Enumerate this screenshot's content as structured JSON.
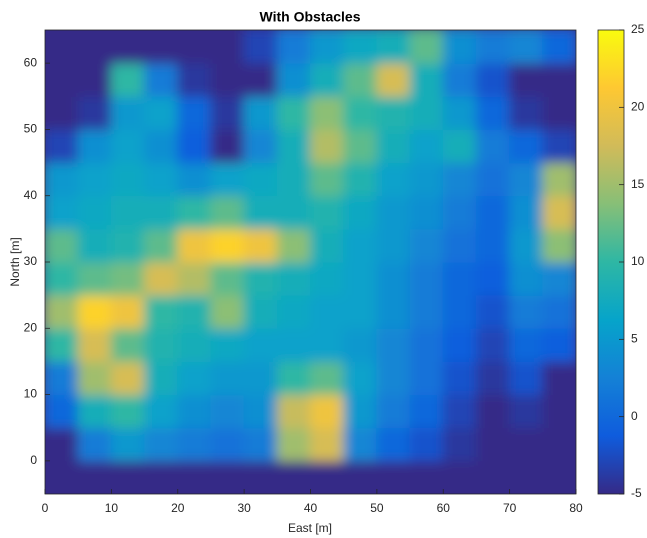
{
  "chart_data": {
    "type": "heatmap",
    "title": "With Obstacles",
    "x_label": "East [m]",
    "y_label": "North [m]",
    "xbins": [
      0,
      5,
      10,
      15,
      20,
      25,
      30,
      35,
      40,
      45,
      50,
      55,
      60,
      65,
      70,
      75,
      80
    ],
    "ybins": [
      -5,
      0,
      5,
      10,
      15,
      20,
      25,
      30,
      35,
      40,
      45,
      50,
      55,
      60,
      65
    ],
    "z": [
      [
        -5,
        -5,
        -5,
        -5,
        -5,
        -5,
        -5,
        -5,
        -5,
        -5,
        -5,
        -5,
        -5,
        -5,
        -5,
        -5
      ],
      [
        -5,
        2,
        5,
        3,
        2,
        1,
        2,
        15,
        18,
        3,
        0,
        -2,
        -4,
        -5,
        -5,
        -5
      ],
      [
        0,
        8,
        10,
        6,
        4,
        3,
        4,
        17,
        20,
        5,
        2,
        0,
        -3,
        -5,
        -4,
        -5
      ],
      [
        2,
        15,
        18,
        8,
        6,
        5,
        5,
        10,
        12,
        6,
        3,
        1,
        -2,
        -4,
        -2,
        -5
      ],
      [
        10,
        18,
        12,
        9,
        8,
        7,
        6,
        6,
        6,
        5,
        3,
        1,
        -1,
        -3,
        0,
        -1
      ],
      [
        15,
        22,
        20,
        10,
        9,
        14,
        8,
        7,
        6,
        6,
        4,
        2,
        0,
        -2,
        2,
        1
      ],
      [
        10,
        12,
        13,
        18,
        16,
        12,
        9,
        8,
        7,
        6,
        4,
        2,
        0,
        -1,
        4,
        3
      ],
      [
        12,
        8,
        9,
        12,
        20,
        22,
        20,
        14,
        8,
        6,
        5,
        3,
        1,
        0,
        5,
        14
      ],
      [
        6,
        7,
        8,
        8,
        10,
        12,
        8,
        8,
        9,
        7,
        5,
        4,
        2,
        0,
        4,
        18
      ],
      [
        5,
        6,
        7,
        6,
        4,
        6,
        7,
        8,
        12,
        9,
        6,
        5,
        3,
        1,
        3,
        15
      ],
      [
        -3,
        4,
        6,
        4,
        -1,
        -5,
        3,
        8,
        16,
        12,
        8,
        6,
        8,
        2,
        0,
        -3
      ],
      [
        -5,
        -4,
        5,
        6,
        0,
        -4,
        5,
        10,
        14,
        10,
        9,
        8,
        5,
        0,
        -4,
        -5
      ],
      [
        -5,
        -5,
        10,
        2,
        -4,
        -5,
        -5,
        4,
        8,
        12,
        18,
        8,
        2,
        -2,
        -5,
        -5
      ],
      [
        -5,
        -5,
        -5,
        -5,
        -5,
        -5,
        -3,
        2,
        5,
        7,
        8,
        12,
        4,
        2,
        3,
        0
      ]
    ],
    "xlim": [
      0,
      80
    ],
    "ylim": [
      -5,
      65
    ],
    "xticks": [
      0,
      10,
      20,
      30,
      40,
      50,
      60,
      70,
      80
    ],
    "yticks": [
      0,
      10,
      20,
      30,
      40,
      50,
      60
    ],
    "clim": [
      -5,
      25
    ],
    "cticks": [
      -5,
      0,
      5,
      10,
      15,
      20,
      25
    ],
    "colormap": [
      "#352a87",
      "#0f5cdd",
      "#1481d6",
      "#06a4ca",
      "#2eb7a4",
      "#87bf77",
      "#d1bb59",
      "#fec832",
      "#f9fb0e"
    ]
  }
}
